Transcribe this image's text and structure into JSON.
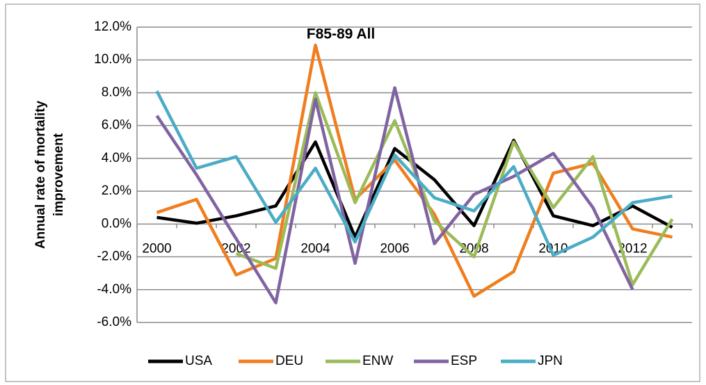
{
  "chart_data": {
    "type": "line",
    "title": "F85-89 All",
    "ylabel": [
      "Annual rate of mortality",
      "improvement"
    ],
    "categories": [
      "2000",
      null,
      "2002",
      null,
      "2004",
      null,
      "2006",
      null,
      "2008",
      null,
      "2010",
      null,
      "2012",
      null
    ],
    "series": [
      {
        "name": "USA",
        "color": "#000000",
        "values": [
          0.4,
          0.05,
          0.5,
          1.1,
          5.0,
          -0.8,
          4.6,
          2.7,
          -0.1,
          5.1,
          0.5,
          -0.1,
          1.1,
          -0.2
        ]
      },
      {
        "name": "DEU",
        "color": "#f07d1e",
        "values": [
          0.7,
          1.5,
          -3.1,
          -2.1,
          10.9,
          1.5,
          3.9,
          0.6,
          -4.4,
          -2.9,
          3.1,
          3.7,
          -0.3,
          -0.8
        ]
      },
      {
        "name": "ENW",
        "color": "#9bbb59",
        "values": [
          null,
          null,
          -1.8,
          -2.7,
          8.0,
          1.3,
          6.3,
          0.2,
          -2.0,
          5.0,
          1.0,
          4.1,
          -3.7,
          0.3
        ]
      },
      {
        "name": "ESP",
        "color": "#8064a2",
        "values": [
          6.6,
          3.0,
          -0.9,
          -4.8,
          7.6,
          -2.4,
          8.3,
          -1.2,
          1.8,
          2.9,
          4.3,
          1.0,
          -4.0,
          null
        ]
      },
      {
        "name": "JPN",
        "color": "#4bacc6",
        "values": [
          8.1,
          3.4,
          4.1,
          0.1,
          3.4,
          -1.1,
          4.2,
          1.6,
          0.8,
          3.5,
          -1.9,
          -0.8,
          1.3,
          1.7
        ]
      }
    ],
    "ylim": [
      -6,
      12
    ],
    "yticks": [
      {
        "value": -6,
        "label": "-6.0%"
      },
      {
        "value": -4,
        "label": "-4.0%"
      },
      {
        "value": -2,
        "label": "-2.0%"
      },
      {
        "value": 0,
        "label": "0.0%"
      },
      {
        "value": 2,
        "label": "2.0%"
      },
      {
        "value": 4,
        "label": "4.0%"
      },
      {
        "value": 6,
        "label": "6.0%"
      },
      {
        "value": 8,
        "label": "8.0%"
      },
      {
        "value": 10,
        "label": "10.0%"
      },
      {
        "value": 12,
        "label": "12.0%"
      }
    ],
    "grid": true,
    "legend": "bottom"
  }
}
